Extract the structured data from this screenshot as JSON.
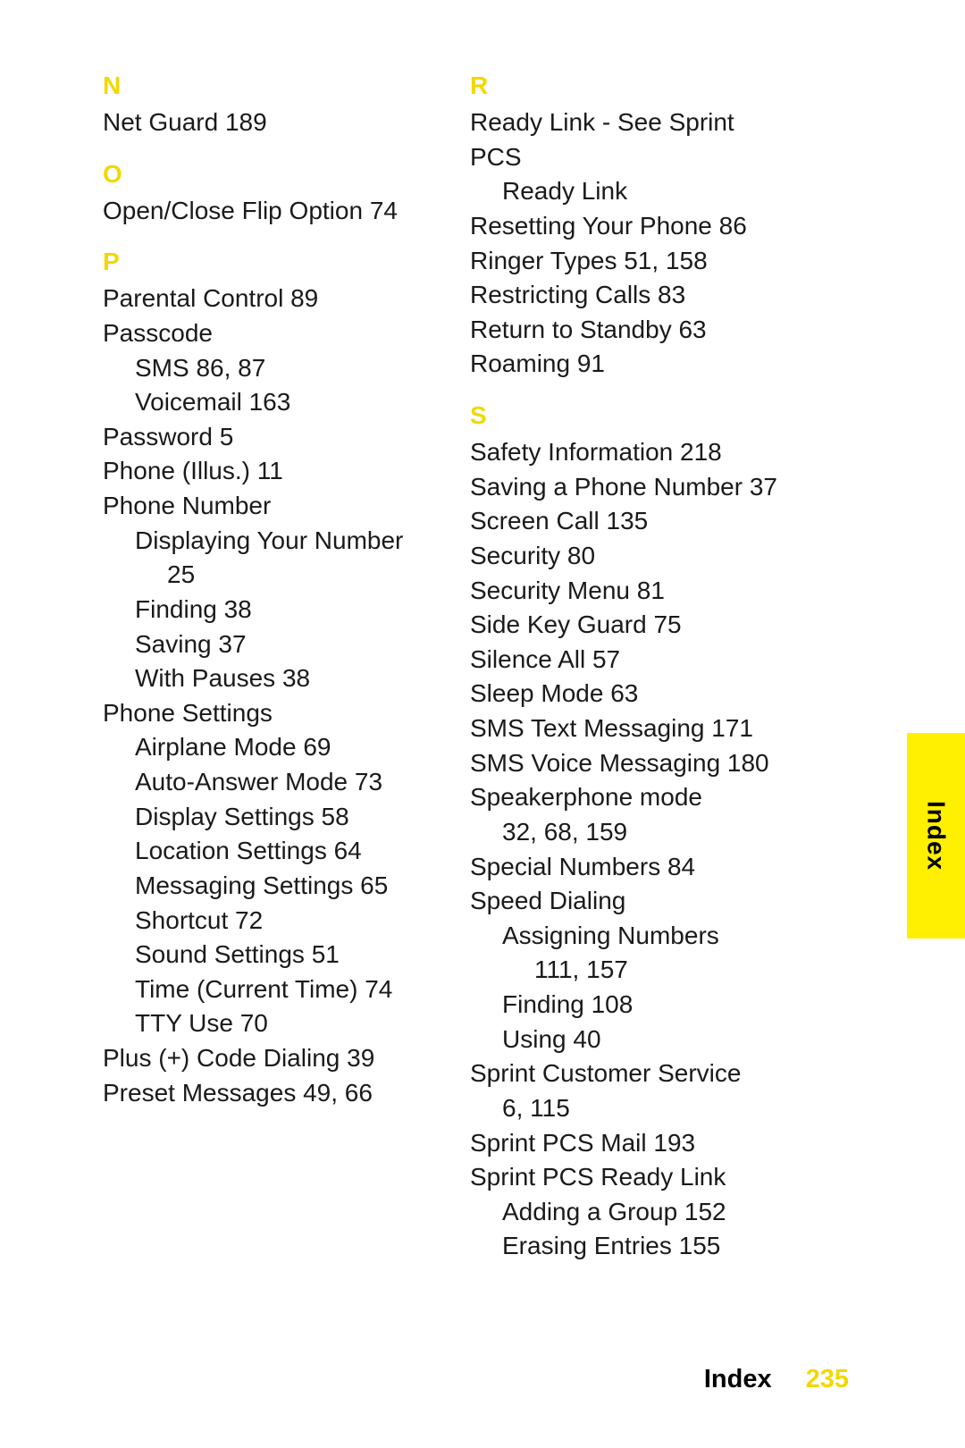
{
  "colors": {
    "accent": "#f2d800",
    "tab_bg": "#ffef00",
    "text": "#1a1a1a",
    "footer_text": "#000000"
  },
  "tab_label": "Index",
  "footer": {
    "label": "Index",
    "page": "235"
  },
  "left": [
    {
      "t": "letter",
      "v": "N",
      "first": true
    },
    {
      "t": "entry",
      "v": "Net Guard 189"
    },
    {
      "t": "letter",
      "v": "O"
    },
    {
      "t": "entry",
      "v": "Open/Close Flip Option 74"
    },
    {
      "t": "letter",
      "v": "P"
    },
    {
      "t": "entry",
      "v": "Parental Control 89"
    },
    {
      "t": "entry",
      "v": "Passcode"
    },
    {
      "t": "sub1",
      "v": "SMS 86, 87"
    },
    {
      "t": "sub1",
      "v": "Voicemail 163"
    },
    {
      "t": "entry",
      "v": "Password 5"
    },
    {
      "t": "entry",
      "v": "Phone (Illus.) 11"
    },
    {
      "t": "entry",
      "v": "Phone Number"
    },
    {
      "t": "sub1",
      "v": "Displaying Your Number"
    },
    {
      "t": "sub2",
      "v": "25"
    },
    {
      "t": "sub1",
      "v": "Finding 38"
    },
    {
      "t": "sub1",
      "v": "Saving 37"
    },
    {
      "t": "sub1",
      "v": "With Pauses 38"
    },
    {
      "t": "entry",
      "v": "Phone Settings"
    },
    {
      "t": "sub1",
      "v": "Airplane Mode 69"
    },
    {
      "t": "sub1",
      "v": "Auto-Answer Mode 73"
    },
    {
      "t": "sub1",
      "v": "Display Settings 58"
    },
    {
      "t": "sub1",
      "v": "Location Settings 64"
    },
    {
      "t": "sub1",
      "v": "Messaging Settings 65"
    },
    {
      "t": "sub1",
      "v": "Shortcut 72"
    },
    {
      "t": "sub1",
      "v": "Sound Settings 51"
    },
    {
      "t": "sub1",
      "v": "Time (Current Time) 74"
    },
    {
      "t": "sub1",
      "v": "TTY Use 70"
    },
    {
      "t": "entry",
      "v": "Plus (+) Code Dialing 39"
    },
    {
      "t": "entry",
      "v": "Preset Messages 49, 66"
    }
  ],
  "right": [
    {
      "t": "letter",
      "v": "R",
      "first": true
    },
    {
      "t": "entry",
      "v": "Ready Link - See Sprint PCS"
    },
    {
      "t": "sub1",
      "v": "Ready Link"
    },
    {
      "t": "entry",
      "v": "Resetting Your Phone 86"
    },
    {
      "t": "entry",
      "v": "Ringer Types 51, 158"
    },
    {
      "t": "entry",
      "v": "Restricting Calls 83"
    },
    {
      "t": "entry",
      "v": "Return to Standby 63"
    },
    {
      "t": "entry",
      "v": "Roaming 91"
    },
    {
      "t": "letter",
      "v": "S"
    },
    {
      "t": "entry",
      "v": "Safety Information 218"
    },
    {
      "t": "entry",
      "v": "Saving a Phone Number 37"
    },
    {
      "t": "entry",
      "v": "Screen Call 135"
    },
    {
      "t": "entry",
      "v": "Security 80"
    },
    {
      "t": "entry",
      "v": "Security Menu 81"
    },
    {
      "t": "entry",
      "v": "Side Key Guard 75"
    },
    {
      "t": "entry",
      "v": "Silence All 57"
    },
    {
      "t": "entry",
      "v": "Sleep Mode 63"
    },
    {
      "t": "entry",
      "v": "SMS Text Messaging 171"
    },
    {
      "t": "entry",
      "v": "SMS Voice Messaging 180"
    },
    {
      "t": "entry",
      "v": "Speakerphone mode"
    },
    {
      "t": "sub1",
      "v": "32, 68, 159"
    },
    {
      "t": "entry",
      "v": "Special Numbers 84"
    },
    {
      "t": "entry",
      "v": "Speed Dialing"
    },
    {
      "t": "sub1",
      "v": "Assigning Numbers"
    },
    {
      "t": "sub2",
      "v": "111, 157"
    },
    {
      "t": "sub1",
      "v": "Finding 108"
    },
    {
      "t": "sub1",
      "v": "Using 40"
    },
    {
      "t": "entry",
      "v": "Sprint Customer Service"
    },
    {
      "t": "sub1",
      "v": "6, 115"
    },
    {
      "t": "entry",
      "v": "Sprint PCS Mail 193"
    },
    {
      "t": "entry",
      "v": "Sprint PCS Ready Link"
    },
    {
      "t": "sub1",
      "v": "Adding a Group 152"
    },
    {
      "t": "sub1",
      "v": "Erasing Entries 155"
    }
  ]
}
